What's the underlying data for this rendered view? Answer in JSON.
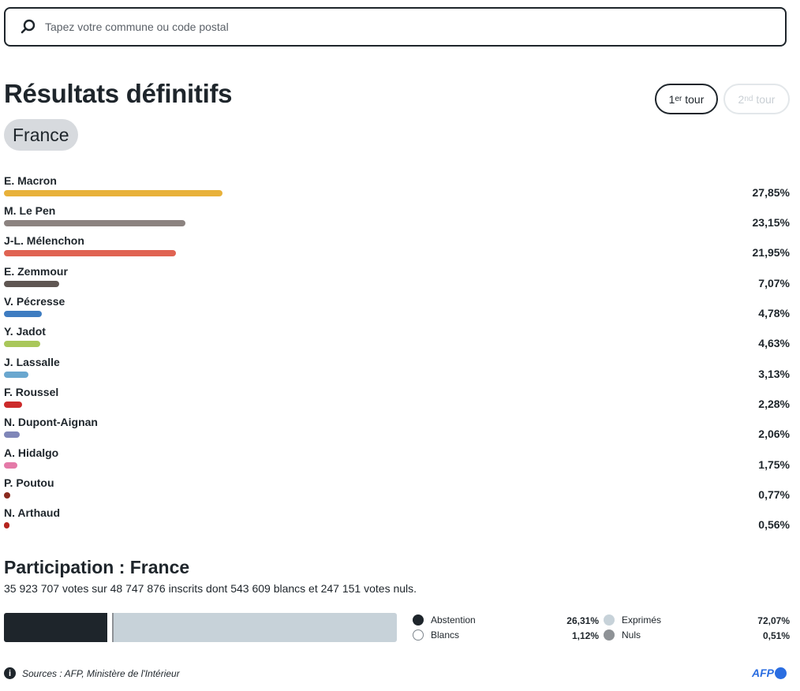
{
  "search": {
    "placeholder": "Tapez votre commune ou code postal"
  },
  "header": {
    "title": "Résultats définitifs",
    "region": "France",
    "tour1": {
      "num": "1",
      "sup": "er",
      "label": " tour"
    },
    "tour2": {
      "num": "2",
      "sup": "nd",
      "label": " tour"
    }
  },
  "candidates": [
    {
      "name": "E. Macron",
      "pct_label": "27,85%",
      "value": 27.85,
      "color": "#e8b13a"
    },
    {
      "name": "M. Le Pen",
      "pct_label": "23,15%",
      "value": 23.15,
      "color": "#8c8380"
    },
    {
      "name": "J-L. Mélenchon",
      "pct_label": "21,95%",
      "value": 21.95,
      "color": "#e06352"
    },
    {
      "name": "E. Zemmour",
      "pct_label": "7,07%",
      "value": 7.07,
      "color": "#5f5652"
    },
    {
      "name": "V. Pécresse",
      "pct_label": "4,78%",
      "value": 4.78,
      "color": "#3e7cc1"
    },
    {
      "name": "Y. Jadot",
      "pct_label": "4,63%",
      "value": 4.63,
      "color": "#a9c75a"
    },
    {
      "name": "J. Lassalle",
      "pct_label": "3,13%",
      "value": 3.13,
      "color": "#6aa7cf"
    },
    {
      "name": "F. Roussel",
      "pct_label": "2,28%",
      "value": 2.28,
      "color": "#cc2a2a"
    },
    {
      "name": "N. Dupont-Aignan",
      "pct_label": "2,06%",
      "value": 2.06,
      "color": "#7f86b8"
    },
    {
      "name": "A. Hidalgo",
      "pct_label": "1,75%",
      "value": 1.75,
      "color": "#e47aa8"
    },
    {
      "name": "P. Poutou",
      "pct_label": "0,77%",
      "value": 0.77,
      "color": "#8a2a1e"
    },
    {
      "name": "N. Arthaud",
      "pct_label": "0,56%",
      "value": 0.56,
      "color": "#b5241e"
    }
  ],
  "participation": {
    "title": "Participation : France",
    "description": "35 923 707 votes sur 48 747 876 inscrits dont 543 609 blancs et 247 151 votes nuls.",
    "segments": [
      {
        "key": "abstention",
        "value": 26.31,
        "color": "#1e252b"
      },
      {
        "key": "blancs",
        "value": 1.12,
        "color": "#ffffff"
      },
      {
        "key": "nuls",
        "value": 0.51,
        "color": "#8e9296"
      },
      {
        "key": "exprimes",
        "value": 72.07,
        "color": "#c7d2d9"
      }
    ],
    "legend": {
      "abstention": {
        "label": "Abstention",
        "value": "26,31%"
      },
      "blancs": {
        "label": "Blancs",
        "value": "1,12%"
      },
      "exprimes": {
        "label": "Exprimés",
        "value": "72,07%"
      },
      "nuls": {
        "label": "Nuls",
        "value": "0,51%"
      }
    }
  },
  "footer": {
    "source": "Sources : AFP, Ministère de l'Intérieur",
    "logo": "AFP",
    "info_icon": "info-icon"
  },
  "colors": {
    "text": "#1e252b",
    "accent": "#2a6de1"
  }
}
